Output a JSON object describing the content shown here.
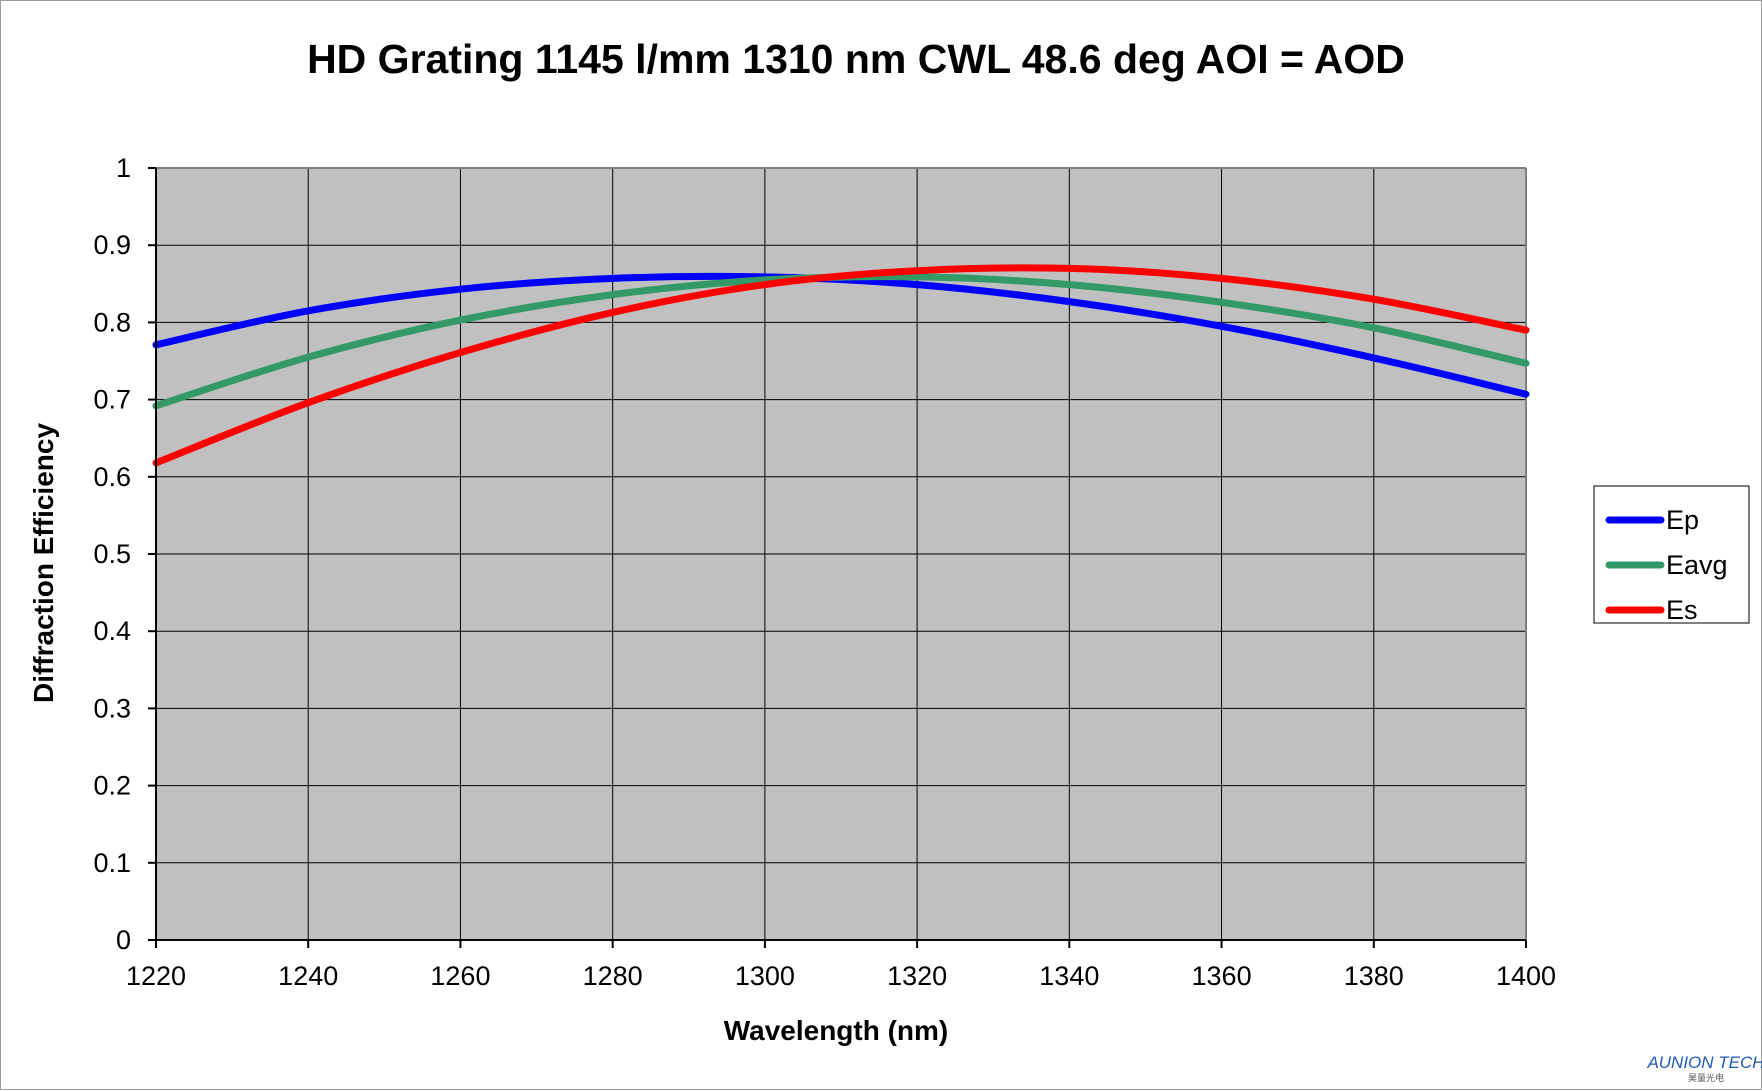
{
  "chart_data": {
    "type": "line",
    "title": "HD Grating 1145 l/mm 1310 nm CWL 48.6 deg AOI = AOD",
    "xlabel": "Wavelength (nm)",
    "ylabel": "Diffraction Efficiency",
    "xlim": [
      1220,
      1400
    ],
    "ylim": [
      0,
      1
    ],
    "x_ticks": [
      1220,
      1240,
      1260,
      1280,
      1300,
      1320,
      1340,
      1360,
      1380,
      1400
    ],
    "y_ticks": [
      0,
      0.1,
      0.2,
      0.3,
      0.4,
      0.5,
      0.6,
      0.7,
      0.8,
      0.9,
      1
    ],
    "y_tick_labels": [
      "0",
      "0.1",
      "0.2",
      "0.3",
      "0.4",
      "0.5",
      "0.6",
      "0.7",
      "0.8",
      "0.9",
      "1"
    ],
    "grid": true,
    "plot_background": "#c0c0c0",
    "legend_position": "right",
    "series": [
      {
        "name": "Ep",
        "color": "#0000ff",
        "x": [
          1220,
          1240,
          1260,
          1280,
          1300,
          1320,
          1340,
          1360,
          1380,
          1400
        ],
        "y": [
          0.771,
          0.815,
          0.843,
          0.857,
          0.859,
          0.849,
          0.827,
          0.795,
          0.754,
          0.707
        ]
      },
      {
        "name": "Eavg",
        "color": "#339966",
        "x": [
          1220,
          1240,
          1260,
          1280,
          1300,
          1320,
          1340,
          1360,
          1380,
          1400
        ],
        "y": [
          0.692,
          0.755,
          0.803,
          0.836,
          0.855,
          0.859,
          0.849,
          0.826,
          0.793,
          0.747
        ]
      },
      {
        "name": "Es",
        "color": "#ff0000",
        "x": [
          1220,
          1240,
          1260,
          1280,
          1300,
          1320,
          1340,
          1360,
          1380,
          1400
        ],
        "y": [
          0.618,
          0.696,
          0.761,
          0.813,
          0.849,
          0.867,
          0.87,
          0.857,
          0.83,
          0.79
        ]
      }
    ]
  },
  "watermark": {
    "text": "AUNION TECH",
    "subtext": "昊量光电"
  }
}
